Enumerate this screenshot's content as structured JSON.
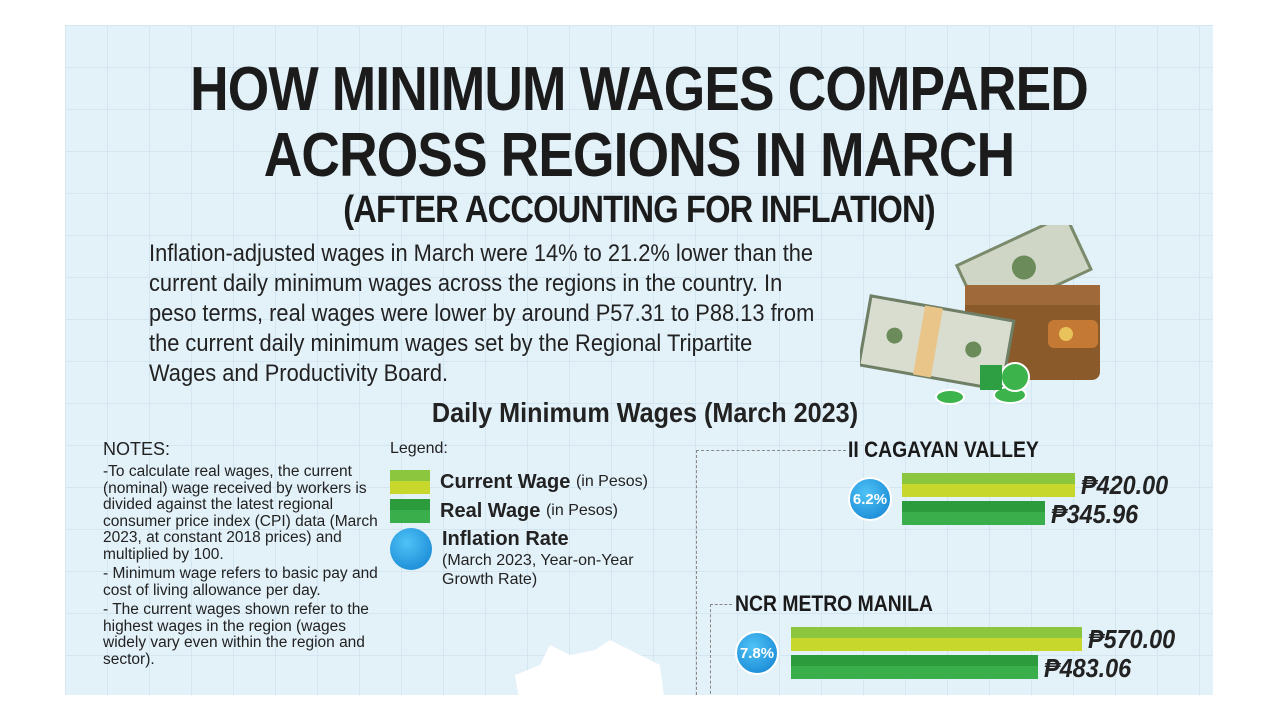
{
  "title_line1": "HOW MINIMUM WAGES COMPARED",
  "title_line2": "ACROSS REGIONS IN MARCH",
  "subtitle": "(AFTER ACCOUNTING FOR INFLATION)",
  "intro": "Inflation-adjusted wages in March were 14% to 21.2% lower than the current daily minimum wages across the regions in the country. In peso terms, real wages were lower by around P57.31 to P88.13 from the current daily minimum wages set by the Regional Tripartite Wages and Productivity Board.",
  "notes": {
    "heading": "NOTES:",
    "items": [
      "-To calculate real wages, the current (nominal) wage received by workers is divided against the latest regional consumer price index (CPI) data (March 2023, at constant 2018 prices) and multiplied by 100.",
      "- Minimum wage refers to basic pay and cost of living allowance per day.",
      "- The current wages shown refer to the highest wages in the region (wages widely vary even within the region and sector)."
    ]
  },
  "legend": {
    "title": "Legend:",
    "current": "Current Wage",
    "current_unit": "(in Pesos)",
    "real": "Real Wage",
    "real_unit": "(in Pesos)",
    "inflation": "Inflation Rate",
    "inflation_note": "(March 2023, Year-on-Year Growth Rate)"
  },
  "colors": {
    "current": "#c8d72b",
    "real": "#3aae4a",
    "inflation": "#1e90d8"
  },
  "chart_data": {
    "type": "bar",
    "title": "Daily Minimum Wages (March 2023)",
    "categories": [
      "II CAGAYAN VALLEY",
      "NCR METRO MANILA"
    ],
    "series": [
      {
        "name": "Current Wage",
        "values": [
          420.0,
          570.0
        ],
        "labels": [
          "₱420.00",
          "₱570.00"
        ]
      },
      {
        "name": "Real Wage",
        "values": [
          345.96,
          483.06
        ],
        "labels": [
          "₱345.96",
          "₱483.06"
        ]
      }
    ],
    "inflation_rate": {
      "values": [
        6.2,
        7.8
      ],
      "labels": [
        "6.2%",
        "7.8%"
      ]
    }
  }
}
